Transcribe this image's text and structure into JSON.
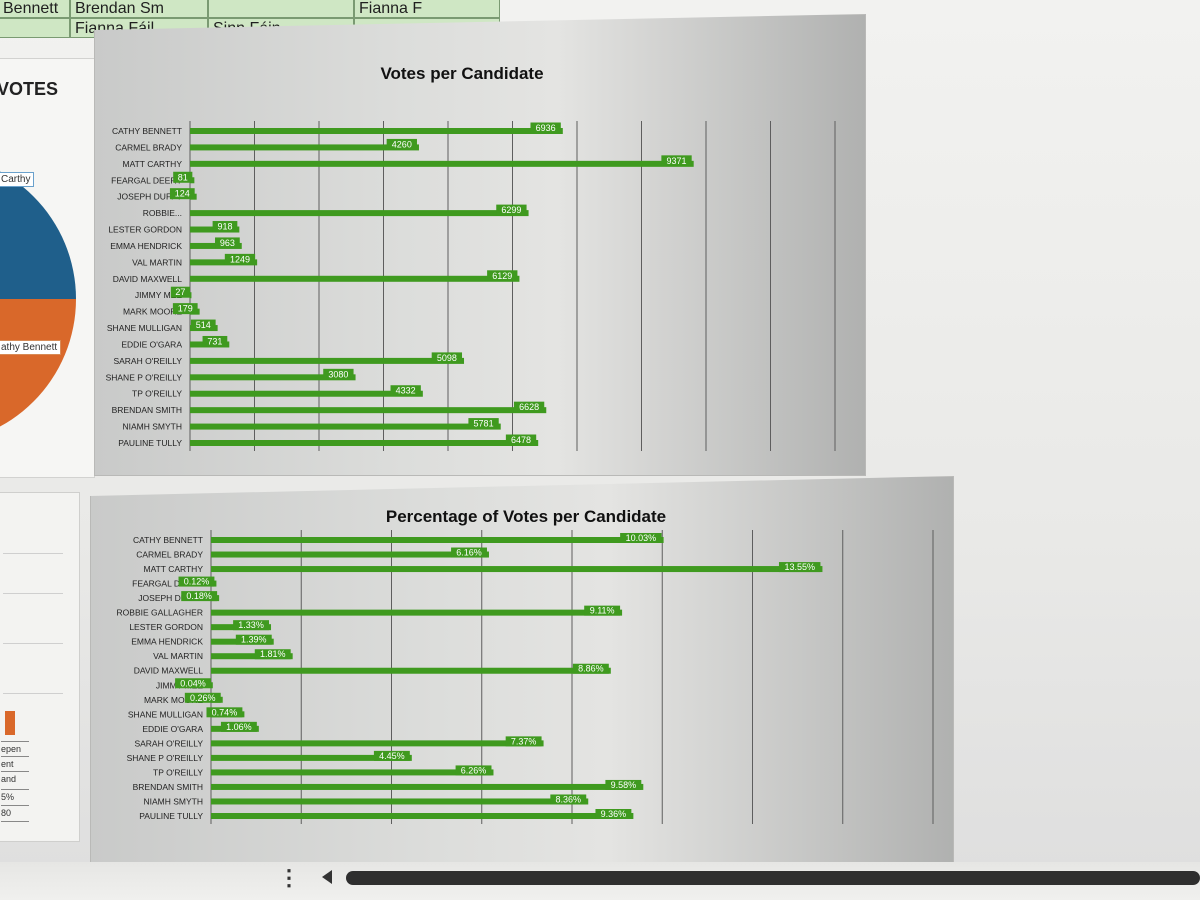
{
  "sheet": {
    "row1": [
      "Bennett",
      "Brendan Sm",
      "",
      "Fianna F"
    ],
    "row2": [
      "",
      "Fianna Fáil",
      "Sinn Féin",
      ""
    ]
  },
  "pie": {
    "title": "VOTES",
    "label_carthy": "Carthy",
    "label_bennett": "athy Bennett",
    "colors": {
      "blue": "#1f5f8b",
      "orange": "#d9682a",
      "dark_orange": "#b44f1c"
    }
  },
  "left_table": [
    "epen",
    "ent",
    "and",
    "5%",
    "80"
  ],
  "chart_data": [
    {
      "type": "bar",
      "title": "Votes per Candidate",
      "xlim": [
        0,
        12000
      ],
      "grid": true,
      "bar_color": "#3f9a1f",
      "categories": [
        "CATHY BENNETT",
        "CARMEL BRADY",
        "MATT CARTHY",
        "FEARGAL DEERY",
        "JOSEPH DUFFY",
        "ROBBIE...",
        "LESTER GORDON",
        "EMMA HENDRICK",
        "VAL MARTIN",
        "DAVID MAXWELL",
        "JIMMY MEE",
        "MARK MOORE",
        "SHANE MULLIGAN",
        "EDDIE O'GARA",
        "SARAH O'REILLY",
        "SHANE P O'REILLY",
        "TP O'REILLY",
        "BRENDAN SMITH",
        "NIAMH SMYTH",
        "PAULINE TULLY"
      ],
      "values": [
        6936,
        4260,
        9371,
        81,
        124,
        6299,
        918,
        963,
        1249,
        6129,
        27,
        179,
        514,
        731,
        5098,
        3080,
        4332,
        6628,
        5781,
        6478
      ],
      "labels": [
        "6936",
        "4260",
        "9371",
        "81",
        "124",
        "6299",
        "918",
        "963",
        "1249",
        "6129",
        "27",
        "179",
        "514",
        "731",
        "5098",
        "3080",
        "4332",
        "6628",
        "5781",
        "6478"
      ]
    },
    {
      "type": "bar",
      "title": "Percentage of Votes per Candidate",
      "xlim": [
        0,
        16
      ],
      "grid": true,
      "bar_color": "#3f9a1f",
      "categories": [
        "CATHY BENNETT",
        "CARMEL BRADY",
        "MATT CARTHY",
        "FEARGAL DEERY",
        "JOSEPH DUFFY",
        "ROBBIE GALLAGHER",
        "LESTER GORDON",
        "EMMA HENDRICK",
        "VAL MARTIN",
        "DAVID MAXWELL",
        "JIMMY MEE",
        "MARK MOORE",
        "SHANE MULLIGAN",
        "EDDIE O'GARA",
        "SARAH O'REILLY",
        "SHANE P O'REILLY",
        "TP O'REILLY",
        "BRENDAN SMITH",
        "NIAMH SMYTH",
        "PAULINE TULLY"
      ],
      "values": [
        10.03,
        6.16,
        13.55,
        0.12,
        0.18,
        9.11,
        1.33,
        1.39,
        1.81,
        8.86,
        0.04,
        0.26,
        0.74,
        1.06,
        7.37,
        4.45,
        6.26,
        9.58,
        8.36,
        9.36
      ],
      "labels": [
        "10.03%",
        "6.16%",
        "13.55%",
        "0.12%",
        "0.18%",
        "9.11%",
        "1.33%",
        "1.39%",
        "1.81%",
        "8.86%",
        "0.04%",
        "0.26%",
        "0.74%",
        "1.06%",
        "7.37%",
        "4.45%",
        "6.26%",
        "9.58%",
        "8.36%",
        "9.36%"
      ]
    }
  ]
}
